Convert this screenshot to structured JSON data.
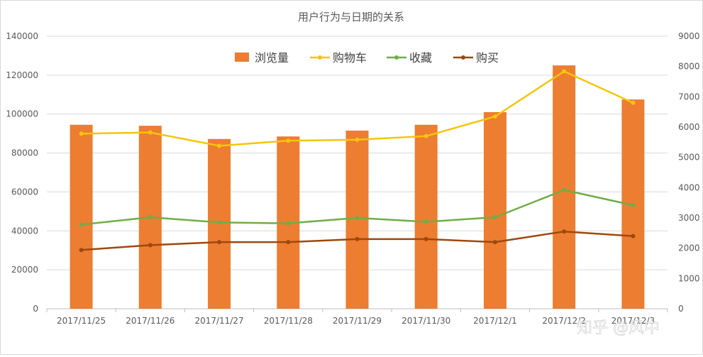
{
  "chart_data": {
    "type": "bar",
    "title": "用户行为与日期的关系",
    "categories": [
      "2017/11/25",
      "2017/11/26",
      "2017/11/27",
      "2017/11/28",
      "2017/11/29",
      "2017/11/30",
      "2017/12/1",
      "2017/12/2",
      "2017/12/3"
    ],
    "left_axis": {
      "ylim": [
        0,
        140000
      ],
      "ticks": [
        "0",
        "20000",
        "40000",
        "60000",
        "80000",
        "100000",
        "120000",
        "140000"
      ]
    },
    "right_axis": {
      "ylim": [
        0,
        9000
      ],
      "ticks": [
        "0",
        "1000",
        "2000",
        "3000",
        "4000",
        "5000",
        "6000",
        "7000",
        "8000",
        "9000"
      ]
    },
    "legend_position": "top",
    "grid": true,
    "series": [
      {
        "name": "浏览量",
        "type": "bar",
        "axis": "left",
        "color": "#ED7D31",
        "values": [
          94500,
          94000,
          87200,
          88500,
          91500,
          94500,
          101000,
          125000,
          107500
        ]
      },
      {
        "name": "购物车",
        "type": "line",
        "axis": "right",
        "color": "#F4C50E",
        "values": [
          5780,
          5820,
          5380,
          5550,
          5580,
          5700,
          6350,
          7840,
          6800
        ]
      },
      {
        "name": "收藏",
        "type": "line",
        "axis": "right",
        "color": "#70AD47",
        "values": [
          2780,
          3020,
          2850,
          2820,
          3000,
          2870,
          3020,
          3920,
          3420
        ]
      },
      {
        "name": "购买",
        "type": "line",
        "axis": "right",
        "color": "#9E480E",
        "values": [
          1940,
          2100,
          2200,
          2200,
          2300,
          2300,
          2200,
          2550,
          2400
        ]
      }
    ]
  },
  "watermark": "知乎 @风中"
}
